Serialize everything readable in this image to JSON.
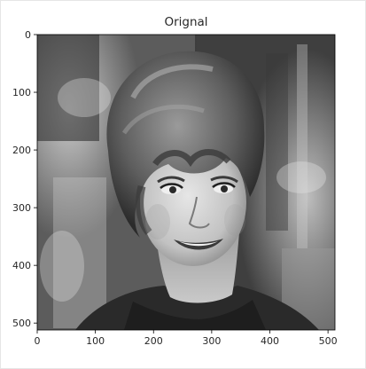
{
  "chart_data": {
    "type": "image",
    "title": "Orignal",
    "xlabel": "",
    "ylabel": "",
    "colormap": "gray",
    "xlim": [
      0,
      512
    ],
    "ylim": [
      512,
      0
    ],
    "x_ticks": [
      0,
      100,
      200,
      300,
      400,
      500
    ],
    "y_ticks": [
      0,
      100,
      200,
      300,
      400,
      500
    ],
    "grid": false,
    "image_subject": "grayscale photograph"
  }
}
